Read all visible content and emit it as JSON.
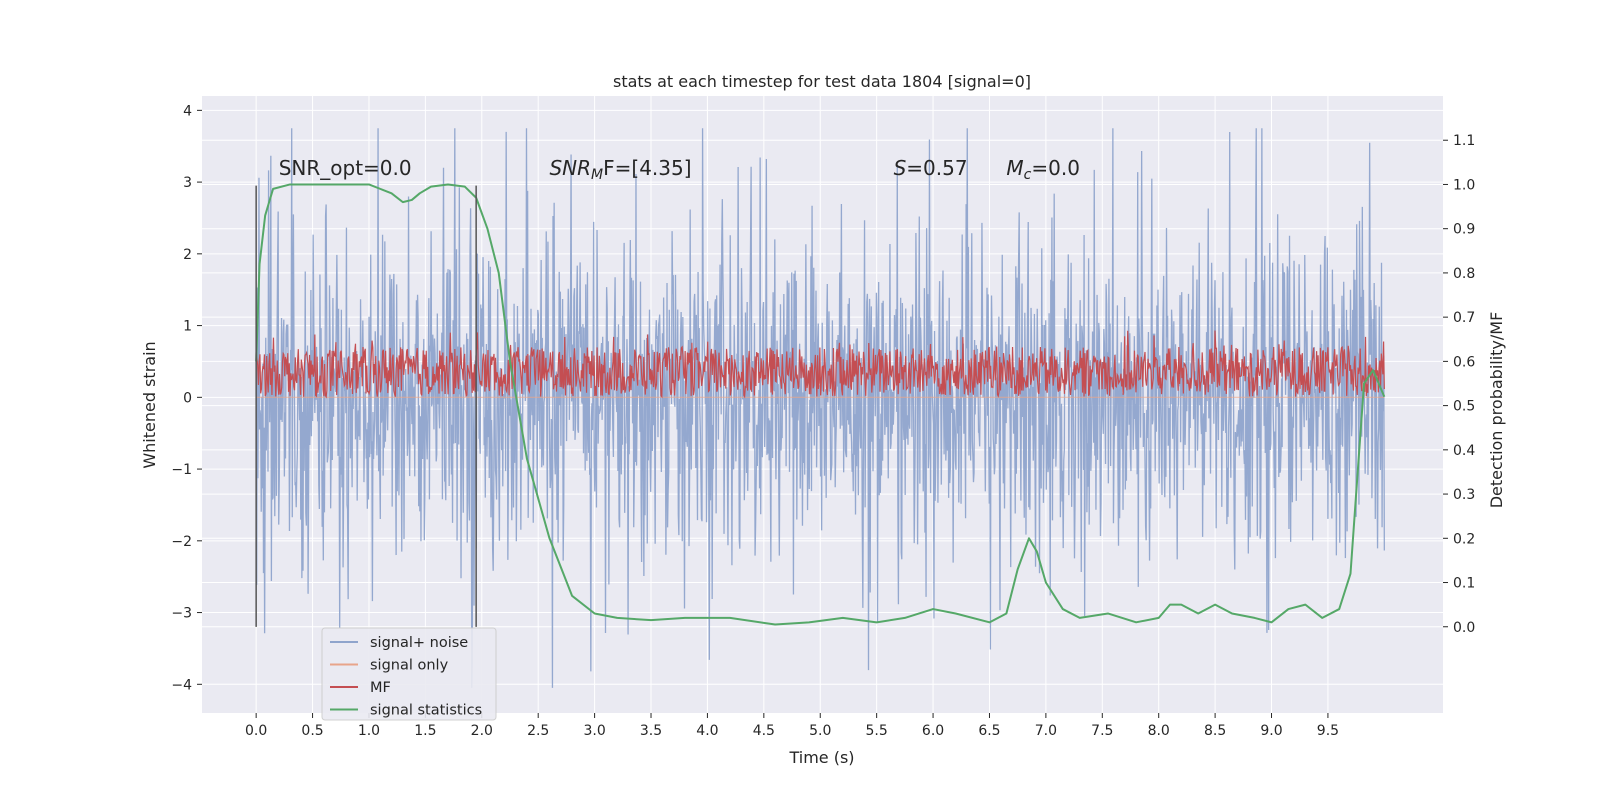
{
  "chart_data": {
    "type": "line",
    "title": "stats at each timestep for test data 1804 [signal=0]",
    "xlabel": "Time (s)",
    "ylabel": "Whitened strain",
    "y2label": "Detection probability/MF",
    "xlim": [
      -0.48,
      10.52
    ],
    "ylim": [
      -4.4,
      4.2
    ],
    "y2lim": [
      -0.195,
      1.2
    ],
    "x_ticks": [
      "0.0",
      "0.5",
      "1.0",
      "1.5",
      "2.0",
      "2.5",
      "3.0",
      "3.5",
      "4.0",
      "4.5",
      "5.0",
      "5.5",
      "6.0",
      "6.5",
      "7.0",
      "7.5",
      "8.0",
      "8.5",
      "9.0",
      "9.5"
    ],
    "x_tick_values": [
      0.0,
      0.5,
      1.0,
      1.5,
      2.0,
      2.5,
      3.0,
      3.5,
      4.0,
      4.5,
      5.0,
      5.5,
      6.0,
      6.5,
      7.0,
      7.5,
      8.0,
      8.5,
      9.0,
      9.5
    ],
    "y_ticks": [
      "4",
      "3",
      "2",
      "1",
      "0",
      "−1",
      "−2",
      "−3",
      "−4"
    ],
    "y_tick_values": [
      4,
      3,
      2,
      1,
      0,
      -1,
      -2,
      -3,
      -4
    ],
    "y2_ticks": [
      "1.1",
      "1.0",
      "0.9",
      "0.8",
      "0.7",
      "0.6",
      "0.5",
      "0.4",
      "0.3",
      "0.2",
      "0.1",
      "0.0"
    ],
    "y2_tick_values": [
      1.1,
      1.0,
      0.9,
      0.8,
      0.7,
      0.6,
      0.5,
      0.4,
      0.3,
      0.2,
      0.1,
      0.0
    ],
    "grid": true,
    "legend_position": "lower-left",
    "colors": {
      "background": "#eaeaf2",
      "grid": "#ffffff",
      "signal_noise": "#8fa4cc",
      "signal_only": "#e8a48a",
      "mf": "#c44e52",
      "statistics": "#55a868",
      "window_lines": "#555555"
    },
    "window_markers": [
      0.0,
      1.95
    ],
    "annotations": [
      {
        "text": "SNR_opt=0.0",
        "x": 0.2,
        "y": 3.1
      },
      {
        "text_main": "SNR",
        "text_sub": "M",
        "text_rest": "F=[4.35]",
        "x": 2.6,
        "y": 3.1
      },
      {
        "text_main": "S",
        "text_rest": "=0.57",
        "x": 5.65,
        "y": 3.1
      },
      {
        "text_main": "M",
        "text_sub": "c",
        "text_rest": "=0.0",
        "x": 6.65,
        "y": 3.1
      }
    ],
    "series": [
      {
        "name": "signal+ noise",
        "kind": "noise",
        "x_range": [
          0.0,
          10.0
        ],
        "y_min": -4.05,
        "y_max": 3.75,
        "samples": 2000
      },
      {
        "name": "signal only",
        "kind": "flat",
        "x_range": [
          0.0,
          10.0
        ],
        "values": [
          0.0
        ]
      },
      {
        "name": "MF",
        "kind": "mf",
        "axis": "secondary",
        "x_range": [
          0.0,
          10.0
        ],
        "y_min": 0.52,
        "y_max": 0.67,
        "samples": 1500
      },
      {
        "name": "signal statistics",
        "kind": "line",
        "axis": "secondary",
        "x": [
          0.0,
          0.03,
          0.08,
          0.15,
          0.3,
          0.6,
          0.9,
          1.0,
          1.1,
          1.2,
          1.3,
          1.38,
          1.45,
          1.55,
          1.7,
          1.85,
          1.95,
          2.05,
          2.15,
          2.25,
          2.4,
          2.6,
          2.8,
          3.0,
          3.2,
          3.5,
          3.8,
          4.2,
          4.6,
          4.9,
          5.2,
          5.5,
          5.75,
          6.0,
          6.2,
          6.5,
          6.65,
          6.75,
          6.85,
          6.92,
          7.0,
          7.15,
          7.3,
          7.55,
          7.8,
          8.0,
          8.1,
          8.2,
          8.35,
          8.5,
          8.65,
          8.85,
          9.0,
          9.15,
          9.3,
          9.45,
          9.6,
          9.7,
          9.75,
          9.82,
          9.9,
          10.0
        ],
        "values": [
          0.6,
          0.82,
          0.93,
          0.99,
          1.0,
          1.0,
          1.0,
          1.0,
          0.99,
          0.98,
          0.96,
          0.965,
          0.98,
          0.995,
          1.0,
          0.995,
          0.97,
          0.9,
          0.8,
          0.6,
          0.38,
          0.2,
          0.07,
          0.03,
          0.02,
          0.015,
          0.02,
          0.02,
          0.005,
          0.01,
          0.02,
          0.01,
          0.02,
          0.04,
          0.03,
          0.01,
          0.03,
          0.13,
          0.2,
          0.17,
          0.1,
          0.04,
          0.02,
          0.03,
          0.01,
          0.02,
          0.05,
          0.05,
          0.03,
          0.05,
          0.03,
          0.02,
          0.01,
          0.04,
          0.05,
          0.02,
          0.04,
          0.12,
          0.3,
          0.55,
          0.58,
          0.52
        ]
      }
    ]
  }
}
